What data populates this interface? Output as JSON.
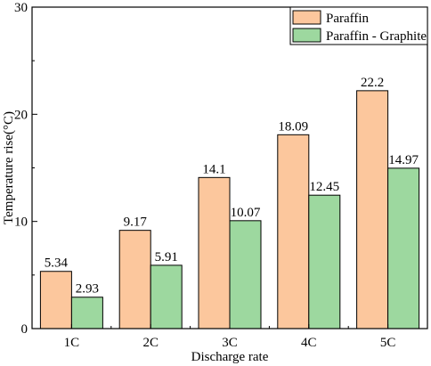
{
  "chart_data": {
    "type": "bar",
    "title": "",
    "xlabel": "Discharge rate",
    "ylabel": "Temperature rise(°C)",
    "ylim": [
      0,
      30
    ],
    "yticks": [
      0,
      10,
      20,
      30
    ],
    "categories": [
      "1C",
      "2C",
      "3C",
      "4C",
      "5C"
    ],
    "series": [
      {
        "name": "Paraffin",
        "color": "#fcc79d",
        "values": [
          5.34,
          9.17,
          14.1,
          18.09,
          22.2
        ],
        "labels": [
          "5.34",
          "9.17",
          "14.1",
          "18.09",
          "22.2"
        ]
      },
      {
        "name": "Paraffin - Graphite",
        "color": "#9dd89f",
        "values": [
          2.93,
          5.91,
          10.07,
          12.45,
          14.97
        ],
        "labels": [
          "2.93",
          "5.91",
          "10.07",
          "12.45",
          "14.97"
        ]
      }
    ],
    "legend_position": "top-right",
    "grid": false
  }
}
